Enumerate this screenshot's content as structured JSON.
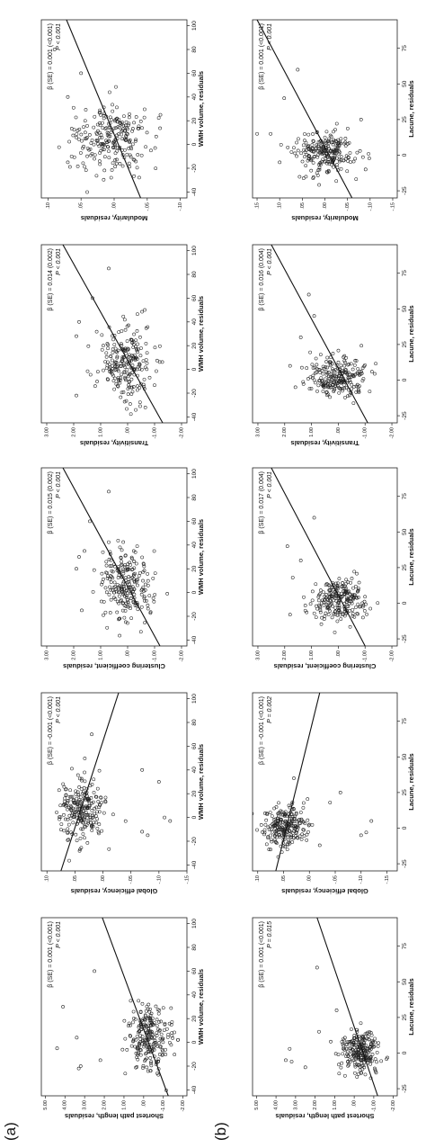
{
  "panel_labels": [
    "(a)",
    "(b)"
  ],
  "chart_data": [
    {
      "id": "a1",
      "type": "scatter",
      "panel": "(a)",
      "xlabel": "WMH volume, residuals",
      "ylabel": "Shortest path length, residuals",
      "xlim": [
        -45,
        105
      ],
      "ylim": [
        -2.2,
        5.2
      ],
      "xticks": [
        -40,
        -20,
        0,
        20,
        40,
        60,
        80,
        100
      ],
      "yticks": [
        -2,
        -1,
        0,
        1,
        2,
        3,
        4,
        5
      ],
      "ytick_labels": [
        "-2.00",
        "-1.00",
        ".00",
        "1.00",
        "2.00",
        "3.00",
        "4.00",
        "5.00"
      ],
      "cluster": {
        "cx": 2,
        "cy": -0.3,
        "sx": 14,
        "sy": 0.55
      },
      "outliers": [
        [
          -20,
          3.2
        ],
        [
          -22,
          3.3
        ],
        [
          4,
          3.4
        ],
        [
          -5,
          4.4
        ],
        [
          30,
          4.1
        ],
        [
          -15,
          2.2
        ],
        [
          60,
          2.5
        ]
      ],
      "fit_line": {
        "x": [
          -45,
          105
        ],
        "y": [
          -1.25,
          2.1
        ]
      },
      "annotation": {
        "beta": "β (SE) = 0.001 (<0.001)",
        "p": "P < 0.001"
      }
    },
    {
      "id": "a2",
      "type": "scatter",
      "panel": "(a)",
      "xlabel": "WMH volume, residuals",
      "ylabel": "Global efficiency, residuals",
      "xlim": [
        -45,
        105
      ],
      "ylim": [
        -0.15,
        0.11
      ],
      "xticks": [
        -40,
        -20,
        0,
        20,
        40,
        60,
        80,
        100
      ],
      "yticks": [
        -0.15,
        -0.1,
        -0.05,
        0,
        0.05,
        0.1
      ],
      "ytick_labels": [
        "-.15",
        "-.10",
        "-.05",
        ".00",
        ".05",
        ".10"
      ],
      "cluster": {
        "cx": 2,
        "cy": 0.04,
        "sx": 14,
        "sy": 0.02
      },
      "outliers": [
        [
          -3,
          -0.12
        ],
        [
          0,
          -0.11
        ],
        [
          -15,
          -0.08
        ],
        [
          -12,
          -0.07
        ],
        [
          40,
          -0.07
        ],
        [
          70,
          0.02
        ],
        [
          30,
          -0.1
        ]
      ],
      "fit_line": {
        "x": [
          -45,
          105
        ],
        "y": [
          0.075,
          -0.028
        ]
      },
      "annotation": {
        "beta": "β (SE) = -0.001 (<0.001)",
        "p": "P < 0.001"
      }
    },
    {
      "id": "a3",
      "type": "scatter",
      "panel": "(a)",
      "xlabel": "WMH volume, residuals",
      "ylabel": "Clustering coefficient, residuals",
      "xlim": [
        -45,
        105
      ],
      "ylim": [
        -2.2,
        3.2
      ],
      "xticks": [
        -40,
        -20,
        0,
        20,
        40,
        60,
        80,
        100
      ],
      "yticks": [
        -2,
        -1,
        0,
        1,
        2,
        3
      ],
      "ytick_labels": [
        "-2.00",
        "-1.00",
        ".00",
        "1.00",
        "2.00",
        "3.00"
      ],
      "cluster": {
        "cx": 3,
        "cy": 0.1,
        "sx": 15,
        "sy": 0.5
      },
      "outliers": [
        [
          20,
          1.9
        ],
        [
          30,
          1.8
        ],
        [
          -15,
          1.7
        ],
        [
          60,
          1.4
        ],
        [
          85,
          0.7
        ],
        [
          35,
          1.6
        ]
      ],
      "fit_line": {
        "x": [
          -45,
          105
        ],
        "y": [
          -1.2,
          2.4
        ]
      },
      "annotation": {
        "beta": "β (SE) = 0.015 (0.002)",
        "p": "P < 0.001"
      }
    },
    {
      "id": "a4",
      "type": "scatter",
      "panel": "(a)",
      "xlabel": "WMH volume, residuals",
      "ylabel": "Transitivity, residuals",
      "xlim": [
        -45,
        105
      ],
      "ylim": [
        -2.2,
        3.2
      ],
      "xticks": [
        -40,
        -20,
        0,
        20,
        40,
        60,
        80,
        100
      ],
      "yticks": [
        -2,
        -1,
        0,
        1,
        2,
        3
      ],
      "ytick_labels": [
        "-2.00",
        "-1.00",
        ".00",
        "1.00",
        "2.00",
        "3.00"
      ],
      "cluster": {
        "cx": 3,
        "cy": 0.0,
        "sx": 15,
        "sy": 0.5
      },
      "outliers": [
        [
          40,
          1.8
        ],
        [
          28,
          1.9
        ],
        [
          -22,
          1.9
        ],
        [
          60,
          1.3
        ],
        [
          85,
          0.7
        ]
      ],
      "fit_line": {
        "x": [
          -45,
          105
        ],
        "y": [
          -1.3,
          2.4
        ]
      },
      "annotation": {
        "beta": "β (SE) = 0.014 (0.002)",
        "p": "P < 0.001"
      }
    },
    {
      "id": "a5",
      "type": "scatter",
      "panel": "(a)",
      "xlabel": "WMH volume, residuals",
      "ylabel": "Modularity, residuals",
      "xlim": [
        -45,
        105
      ],
      "ylim": [
        -0.11,
        0.11
      ],
      "xticks": [
        -40,
        -20,
        0,
        20,
        40,
        60,
        80,
        100
      ],
      "yticks": [
        -0.1,
        -0.05,
        0,
        0.05,
        0.1
      ],
      "ytick_labels": [
        "-.10",
        "-.05",
        ".00",
        ".05",
        ".10"
      ],
      "cluster": {
        "cx": 2,
        "cy": 0.005,
        "sx": 14,
        "sy": 0.028
      },
      "outliers": [
        [
          80,
          0.09
        ],
        [
          40,
          0.07
        ],
        [
          -15,
          0.07
        ],
        [
          60,
          0.05
        ],
        [
          25,
          -0.07
        ]
      ],
      "fit_line": {
        "x": [
          -45,
          105
        ],
        "y": [
          -0.04,
          0.072
        ]
      },
      "annotation": {
        "beta": "β (SE) = 0.001 (<0.001)",
        "p": "P < 0.001"
      }
    },
    {
      "id": "b1",
      "type": "scatter",
      "panel": "(b)",
      "xlabel": "Lacune, residuals",
      "ylabel": "Shortest path length, residuals",
      "xlim": [
        -30,
        95
      ],
      "ylim": [
        -2.2,
        5.2
      ],
      "xticks": [
        -25,
        0,
        25,
        50,
        75
      ],
      "yticks": [
        -2,
        -1,
        0,
        1,
        2,
        3,
        4,
        5
      ],
      "ytick_labels": [
        "-2.00",
        "-1.00",
        ".00",
        "1.00",
        "2.00",
        "3.00",
        "4.00",
        "5.00"
      ],
      "cluster": {
        "cx": 0,
        "cy": -0.3,
        "sx": 7,
        "sy": 0.5
      },
      "outliers": [
        [
          -5,
          3.5
        ],
        [
          -6,
          3.2
        ],
        [
          3,
          3.3
        ],
        [
          8,
          1.2
        ],
        [
          15,
          1.8
        ],
        [
          30,
          0.9
        ],
        [
          60,
          1.9
        ],
        [
          -10,
          2.5
        ]
      ],
      "fit_line": {
        "x": [
          -30,
          95
        ],
        "y": [
          -1.2,
          1.9
        ]
      },
      "annotation": {
        "beta": "β (SE) = 0.001 (<0.001)",
        "p": "P = 0.015"
      }
    },
    {
      "id": "b2",
      "type": "scatter",
      "panel": "(b)",
      "xlabel": "Lacune, residuals",
      "ylabel": "Global efficiency, residuals",
      "xlim": [
        -30,
        95
      ],
      "ylim": [
        -0.17,
        0.11
      ],
      "xticks": [
        -25,
        0,
        25,
        50,
        75
      ],
      "yticks": [
        -0.15,
        -0.1,
        -0.05,
        0,
        0.05,
        0.1
      ],
      "ytick_labels": [
        "-.15",
        "-.10",
        "-.05",
        ".00",
        ".05",
        ".10"
      ],
      "cluster": {
        "cx": 0,
        "cy": 0.045,
        "sx": 7,
        "sy": 0.02
      },
      "outliers": [
        [
          -5,
          -0.1
        ],
        [
          -3,
          -0.11
        ],
        [
          5,
          -0.12
        ],
        [
          18,
          -0.04
        ],
        [
          25,
          -0.06
        ],
        [
          35,
          0.03
        ],
        [
          -12,
          -0.02
        ]
      ],
      "fit_line": {
        "x": [
          -30,
          95
        ],
        "y": [
          0.065,
          -0.02
        ]
      },
      "annotation": {
        "beta": "β (SE) = -0.001 (<0.001)",
        "p": "P = 0.002"
      }
    },
    {
      "id": "b3",
      "type": "scatter",
      "panel": "(b)",
      "xlabel": "Lacune, residuals",
      "ylabel": "Clustering coefficient, residuals",
      "xlim": [
        -30,
        95
      ],
      "ylim": [
        -2.2,
        3.2
      ],
      "xticks": [
        -25,
        0,
        25,
        50,
        75
      ],
      "yticks": [
        -2,
        -1,
        0,
        1,
        2,
        3
      ],
      "ytick_labels": [
        "-2.00",
        "-1.00",
        ".00",
        "1.00",
        "2.00",
        "3.00"
      ],
      "cluster": {
        "cx": 1,
        "cy": 0.0,
        "sx": 7,
        "sy": 0.5
      },
      "outliers": [
        [
          40,
          1.9
        ],
        [
          18,
          1.7
        ],
        [
          -8,
          1.8
        ],
        [
          60,
          0.9
        ],
        [
          30,
          1.4
        ]
      ],
      "fit_line": {
        "x": [
          -30,
          95
        ],
        "y": [
          -1.0,
          2.5
        ]
      },
      "annotation": {
        "beta": "β (SE) = 0.017 (0.004)",
        "p": "P < 0.001"
      }
    },
    {
      "id": "b4",
      "type": "scatter",
      "panel": "(b)",
      "xlabel": "Lacune, residuals",
      "ylabel": "Transitivity, residuals",
      "xlim": [
        -30,
        95
      ],
      "ylim": [
        -2.2,
        3.2
      ],
      "xticks": [
        -25,
        0,
        25,
        50,
        75
      ],
      "yticks": [
        -2,
        -1,
        0,
        1,
        2,
        3
      ],
      "ytick_labels": [
        "-2.00",
        "-1.00",
        ".00",
        "1.00",
        "2.00",
        "3.00"
      ],
      "cluster": {
        "cx": 1,
        "cy": 0.0,
        "sx": 7,
        "sy": 0.5
      },
      "outliers": [
        [
          10,
          1.8
        ],
        [
          -5,
          1.6
        ],
        [
          30,
          1.4
        ],
        [
          45,
          0.9
        ],
        [
          60,
          1.1
        ]
      ],
      "fit_line": {
        "x": [
          -30,
          95
        ],
        "y": [
          -1.1,
          2.5
        ]
      },
      "annotation": {
        "beta": "β (SE) = 0.016 (0.004)",
        "p": "P < 0.001"
      }
    },
    {
      "id": "b5",
      "type": "scatter",
      "panel": "(b)",
      "xlabel": "Lacune, residuals",
      "ylabel": "Modularity, residuals",
      "xlim": [
        -30,
        95
      ],
      "ylim": [
        -0.16,
        0.16
      ],
      "xticks": [
        -25,
        0,
        25,
        50,
        75
      ],
      "yticks": [
        -0.15,
        -0.1,
        -0.05,
        0,
        0.05,
        0.1,
        0.15
      ],
      "ytick_labels": [
        "-.15",
        "-.10",
        "-.05",
        ".00",
        ".05",
        ".10",
        ".15"
      ],
      "cluster": {
        "cx": 0,
        "cy": 0.0,
        "sx": 7,
        "sy": 0.035
      },
      "outliers": [
        [
          15,
          0.12
        ],
        [
          -5,
          0.1
        ],
        [
          40,
          0.09
        ],
        [
          60,
          0.06
        ],
        [
          -10,
          -0.09
        ],
        [
          25,
          -0.08
        ]
      ],
      "fit_line": {
        "x": [
          -30,
          95
        ],
        "y": [
          -0.06,
          0.15
        ]
      },
      "annotation": {
        "beta": "β (SE) = 0.001 (<0.001)",
        "p": "P < 0.001"
      }
    }
  ]
}
